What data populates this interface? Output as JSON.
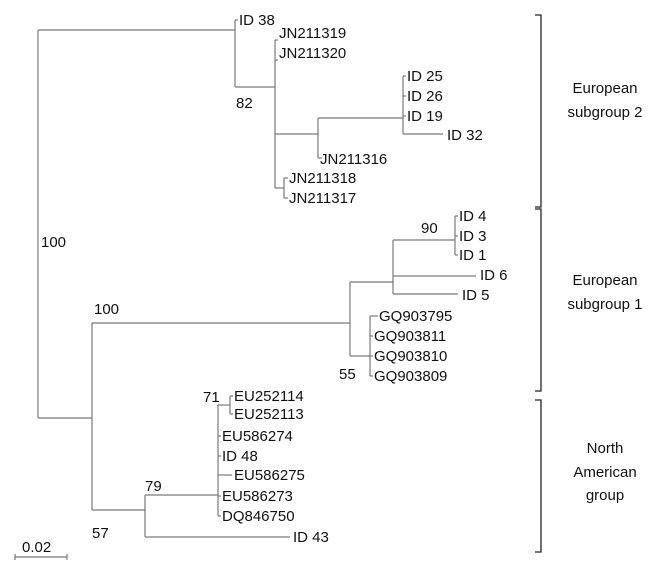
{
  "leaves": [
    "ID 38",
    "JN211319",
    "JN211320",
    "ID 25",
    "ID 26",
    "ID 19",
    "ID 32",
    "JN211316",
    "JN211318",
    "JN211317",
    "ID 4",
    "ID 3",
    "ID 1",
    "ID 6",
    "ID 5",
    "GQ903795",
    "GQ903811",
    "GQ903810",
    "GQ903809",
    "EU252114",
    "EU252113",
    "EU586274",
    "ID 48",
    "EU586275",
    "EU586273",
    "DQ846750",
    "ID 43"
  ],
  "support": [
    "100",
    "82",
    "90",
    "100",
    "55",
    "71",
    "79",
    "57"
  ],
  "groups": [
    {
      "line1": "European",
      "line2": "subgroup 2"
    },
    {
      "line1": "European",
      "line2": "subgroup 1"
    },
    {
      "line1": "North",
      "line2": "American",
      "line3": "group"
    }
  ],
  "scale_label": "0.02",
  "colors": {
    "branch": "#7a7a7a",
    "text": "#111111"
  }
}
